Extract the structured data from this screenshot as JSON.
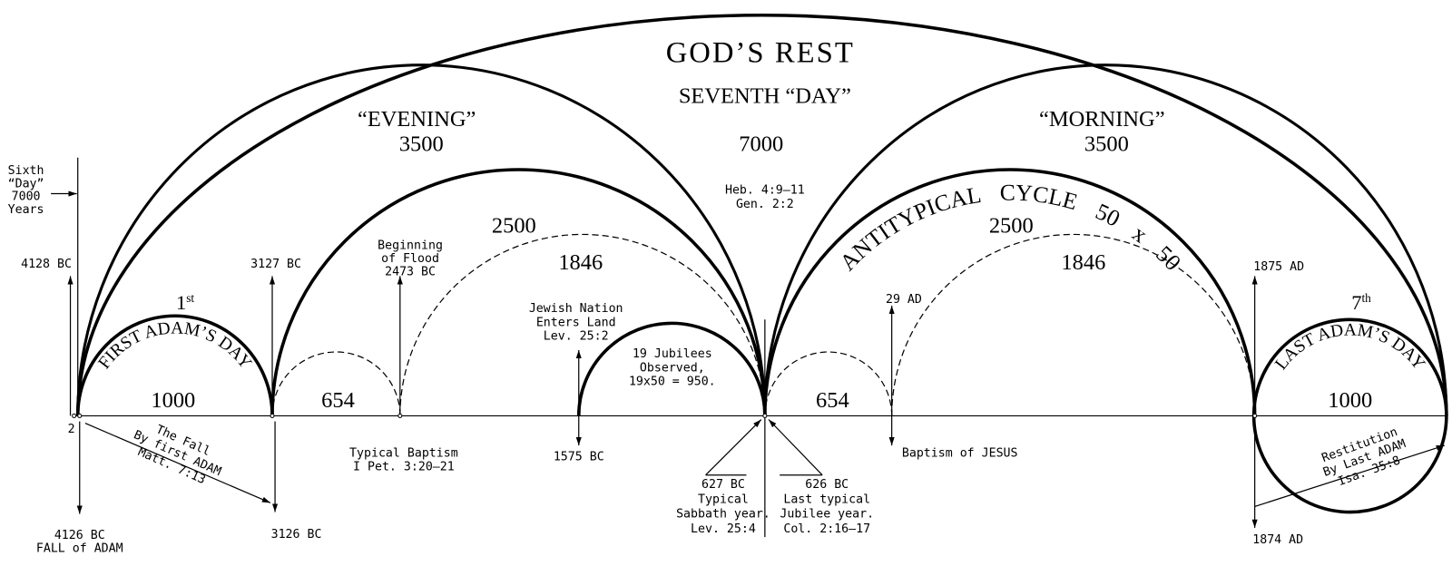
{
  "header": {
    "title": "GOD’S REST",
    "subtitle": "SEVENTH “DAY”",
    "total": "7000"
  },
  "evening": {
    "label": "“EVENING”",
    "years": "3500"
  },
  "morning": {
    "label": "“MORNING”",
    "years": "3500"
  },
  "sixth_day": {
    "lines": [
      "Sixth",
      "“Day”",
      "7000",
      "Years"
    ]
  },
  "references": {
    "lines": [
      "Heb. 4:9–11",
      "Gen. 2:2"
    ]
  },
  "first_adam": {
    "ordinal": "1",
    "ordinal_suffix": "st",
    "label": "FIRST ADAM’S DAY",
    "years": "1000"
  },
  "last_adam": {
    "ordinal": "7",
    "ordinal_suffix": "th",
    "label": "LAST ADAM’S DAY",
    "years": "1000"
  },
  "antitypical": {
    "label": "ANTITYPICAL CYCLE",
    "ratio": "50 x 50"
  },
  "left_periods": {
    "outer": "2500",
    "inner": "1846",
    "small": "654"
  },
  "right_periods": {
    "outer": "2500",
    "inner": "1846",
    "small": "654"
  },
  "dates": {
    "d4128bc": "4128 BC",
    "d3127bc": "3127 BC",
    "d1875ad": "1875 AD",
    "d29ad": "29 AD",
    "d1575bc": "1575 BC",
    "d4126bc": [
      "4126 BC",
      "FALL of ADAM"
    ],
    "d3126bc": "3126 BC",
    "d1874ad": "1874 AD"
  },
  "marker_2": "2",
  "notes": {
    "flood": [
      "Beginning",
      "of Flood",
      "2473 BC"
    ],
    "jewish_nation": [
      "Jewish Nation",
      "Enters Land",
      "Lev. 25:2"
    ],
    "jubilees": [
      "19 Jubilees",
      "Observed,",
      "19x50 = 950."
    ],
    "typical_baptism": [
      "Typical Baptism",
      "I Pet. 3:20–21"
    ],
    "baptism_jesus": "Baptism of JESUS",
    "fall": [
      "The Fall",
      "By first ADAM",
      "Matt. 7:13"
    ],
    "restitution": [
      "Restitution",
      "By Last ADAM",
      "Isa. 35:8"
    ],
    "sabbath": [
      "627 BC",
      "Typical",
      "Sabbath year.",
      "Lev. 25:4"
    ],
    "jubilee": [
      "626 BC",
      "Last typical",
      "Jubilee year.",
      "Col. 2:16–17"
    ]
  }
}
